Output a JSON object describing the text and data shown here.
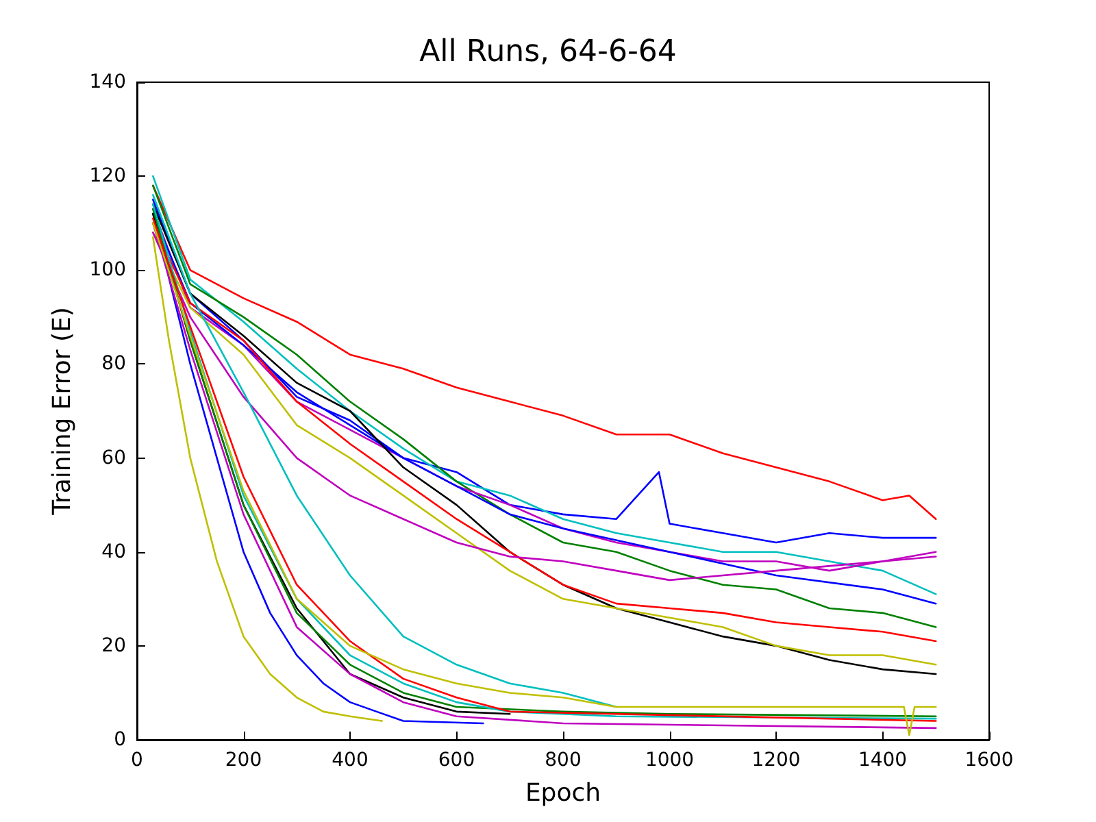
{
  "chart_data": {
    "type": "line",
    "title": "All Runs, 64-6-64",
    "xlabel": "Epoch",
    "ylabel": "Training Error (E)",
    "xlim": [
      0,
      1600
    ],
    "xticks": [
      0,
      200,
      400,
      600,
      800,
      1000,
      1200,
      1400,
      1600
    ],
    "ylim": [
      0,
      140
    ],
    "yticks": [
      0,
      20,
      40,
      60,
      80,
      100,
      120,
      140
    ],
    "grid": false,
    "marker": "none",
    "line_style": "solid",
    "series": [
      {
        "color": "#ff0000",
        "x": [
          30,
          100,
          200,
          300,
          400,
          500,
          600,
          700,
          800,
          900,
          1000,
          1100,
          1200,
          1300,
          1400,
          1450,
          1500
        ],
        "values": [
          118,
          100,
          94,
          89,
          82,
          79,
          75,
          72,
          69,
          65,
          65,
          61,
          58,
          55,
          51,
          52,
          47
        ]
      },
      {
        "color": "#0000ff",
        "x": [
          30,
          100,
          200,
          300,
          400,
          500,
          600,
          700,
          800,
          900,
          980,
          1000,
          1100,
          1200,
          1300,
          1400,
          1500
        ],
        "values": [
          115,
          95,
          85,
          73,
          68,
          60,
          57,
          50,
          48,
          47,
          57,
          46,
          44,
          42,
          44,
          43,
          43
        ]
      },
      {
        "color": "#00bfbf",
        "x": [
          30,
          100,
          200,
          300,
          400,
          500,
          600,
          700,
          800,
          900,
          1000,
          1100,
          1200,
          1300,
          1400,
          1500
        ],
        "values": [
          120,
          98,
          89,
          79,
          70,
          62,
          55,
          52,
          47,
          44,
          42,
          40,
          40,
          38,
          36,
          31
        ]
      },
      {
        "color": "#008000",
        "x": [
          30,
          100,
          200,
          300,
          400,
          500,
          600,
          700,
          800,
          900,
          1000,
          1100,
          1200,
          1300,
          1400,
          1500
        ],
        "values": [
          118,
          97,
          90,
          82,
          72,
          64,
          55,
          48,
          42,
          40,
          36,
          33,
          32,
          28,
          27,
          24
        ]
      },
      {
        "color": "#bf00bf",
        "x": [
          30,
          100,
          200,
          300,
          400,
          500,
          600,
          700,
          800,
          900,
          1000,
          1100,
          1200,
          1300,
          1400,
          1500
        ],
        "values": [
          113,
          92,
          84,
          72,
          66,
          60,
          54,
          50,
          45,
          42,
          40,
          38,
          38,
          36,
          38,
          39
        ]
      },
      {
        "color": "#0000ff",
        "x": [
          30,
          100,
          200,
          300,
          400,
          500,
          600,
          700,
          800,
          1000,
          1200,
          1400,
          1500
        ],
        "values": [
          112,
          93,
          84,
          74,
          67,
          60,
          54,
          48,
          45,
          40,
          35,
          32,
          29
        ]
      },
      {
        "color": "#000000",
        "x": [
          30,
          100,
          200,
          300,
          400,
          500,
          600,
          700,
          800,
          900,
          1000,
          1100,
          1200,
          1300,
          1400,
          1500
        ],
        "values": [
          114,
          95,
          86,
          76,
          70,
          58,
          50,
          40,
          33,
          28,
          25,
          22,
          20,
          17,
          15,
          14
        ]
      },
      {
        "color": "#ff0000",
        "x": [
          30,
          100,
          200,
          300,
          400,
          500,
          600,
          700,
          800,
          900,
          1000,
          1100,
          1200,
          1300,
          1400,
          1500
        ],
        "values": [
          110,
          93,
          85,
          72,
          63,
          55,
          47,
          40,
          33,
          29,
          28,
          27,
          25,
          24,
          23,
          21
        ]
      },
      {
        "color": "#bfbf00",
        "x": [
          30,
          100,
          200,
          300,
          400,
          500,
          600,
          700,
          800,
          900,
          1000,
          1100,
          1200,
          1300,
          1400,
          1500
        ],
        "values": [
          108,
          92,
          82,
          67,
          60,
          52,
          44,
          36,
          30,
          28,
          26,
          24,
          20,
          18,
          18,
          16
        ]
      },
      {
        "color": "#bf00bf",
        "x": [
          30,
          100,
          200,
          300,
          400,
          500,
          600,
          700,
          800,
          900,
          1000,
          1200,
          1400,
          1500
        ],
        "values": [
          108,
          90,
          73,
          60,
          52,
          47,
          42,
          39,
          38,
          36,
          34,
          36,
          38,
          40
        ]
      },
      {
        "color": "#bfbf00",
        "x": [
          30,
          60,
          100,
          150,
          200,
          250,
          300,
          350,
          400,
          460
        ],
        "values": [
          107,
          85,
          60,
          38,
          22,
          14,
          9,
          6,
          5,
          4
        ]
      },
      {
        "color": "#0000ff",
        "x": [
          30,
          100,
          150,
          200,
          250,
          300,
          350,
          400,
          450,
          500,
          650
        ],
        "values": [
          112,
          80,
          60,
          40,
          27,
          18,
          12,
          8,
          6,
          4,
          3.5
        ]
      },
      {
        "color": "#000000",
        "x": [
          30,
          100,
          200,
          300,
          400,
          500,
          600,
          700
        ],
        "values": [
          112,
          85,
          50,
          28,
          14,
          9,
          6,
          5.5
        ]
      },
      {
        "color": "#008000",
        "x": [
          30,
          100,
          200,
          300,
          400,
          500,
          600,
          800,
          1000,
          1500
        ],
        "values": [
          113,
          85,
          50,
          27,
          16,
          10,
          7,
          6,
          5.5,
          5
        ]
      },
      {
        "color": "#bf00bf",
        "x": [
          30,
          100,
          200,
          300,
          400,
          500,
          600,
          800,
          1500
        ],
        "values": [
          110,
          83,
          48,
          24,
          14,
          8,
          5,
          3.5,
          2.5
        ]
      },
      {
        "color": "#00bfbf",
        "x": [
          30,
          100,
          200,
          300,
          400,
          500,
          600,
          700,
          900,
          1500
        ],
        "values": [
          114,
          87,
          52,
          30,
          18,
          12,
          8,
          6,
          5,
          4.5
        ]
      },
      {
        "color": "#ff0000",
        "x": [
          30,
          100,
          200,
          300,
          400,
          500,
          600,
          700,
          1500
        ],
        "values": [
          111,
          88,
          56,
          33,
          21,
          13,
          9,
          6,
          4
        ]
      },
      {
        "color": "#00bfbf",
        "x": [
          30,
          100,
          200,
          300,
          400,
          500,
          600,
          700,
          800,
          900
        ],
        "values": [
          116,
          95,
          74,
          52,
          35,
          22,
          16,
          12,
          10,
          7
        ]
      },
      {
        "color": "#bfbf00",
        "x": [
          30,
          100,
          200,
          300,
          400,
          500,
          600,
          700,
          800,
          900,
          1000,
          1200,
          1440,
          1450,
          1460,
          1500
        ],
        "values": [
          110,
          86,
          53,
          30,
          20,
          15,
          12,
          10,
          9,
          7,
          7,
          7,
          7,
          1,
          7,
          7
        ]
      }
    ]
  }
}
